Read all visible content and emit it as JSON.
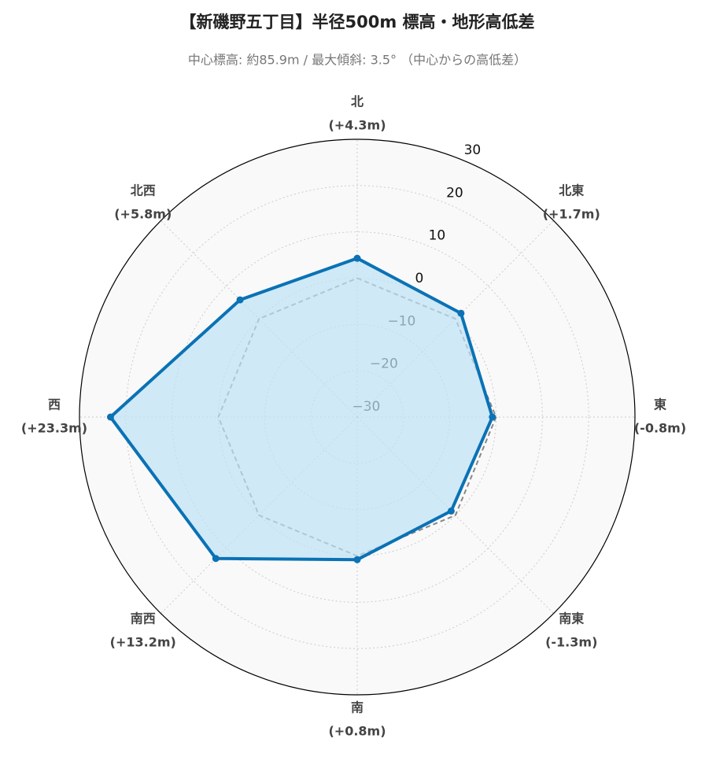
{
  "chart_data": {
    "type": "radar",
    "title": "【新磯野五丁目】半径500m 標高・地形高低差",
    "subtitle": "中心標高: 約85.9m / 最大傾斜: 3.5°  （中心からの高低差）",
    "categories": [
      "北",
      "北東",
      "東",
      "南東",
      "南",
      "南西",
      "西",
      "北西"
    ],
    "series": [
      {
        "color": "#0a72b5",
        "fill": "#bfe3f6",
        "values": [
          4.3,
          1.7,
          -0.8,
          -1.3,
          0.8,
          13.2,
          23.3,
          5.8
        ],
        "value_labels": [
          "(+4.3m)",
          "(+1.7m)",
          "(-0.8m)",
          "(-1.3m)",
          "(+0.8m)",
          "(+13.2m)",
          "(+23.3m)",
          "(+5.8m)"
        ]
      },
      {
        "color": "#888888",
        "dashed": true,
        "values": [
          0,
          0,
          0,
          0,
          0,
          0,
          0,
          0
        ]
      }
    ],
    "ylim": [
      -30,
      30
    ],
    "yticks": [
      {
        "value": -30,
        "label": "−30"
      },
      {
        "value": -20,
        "label": "−20"
      },
      {
        "value": -10,
        "label": "−10"
      },
      0,
      10,
      20,
      30
    ],
    "grid": true
  }
}
